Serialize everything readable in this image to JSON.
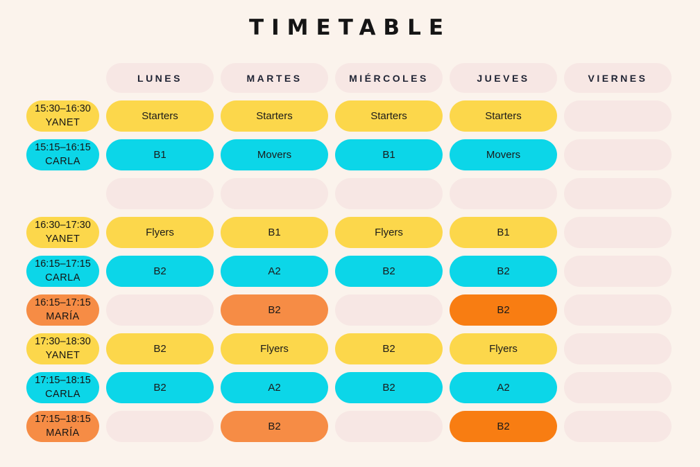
{
  "title": "TIMETABLE",
  "palette": {
    "background": "#fbf3ec",
    "empty_pill": "#f7e7e4",
    "yellow": "#fcd74b",
    "cyan": "#0cd6e8",
    "orange": "#f68c45",
    "orange_dark": "#f87d12",
    "header_text": "#1f2333",
    "cell_text": "#1a1a1a"
  },
  "days": [
    "LUNES",
    "MARTES",
    "MIÉRCOLES",
    "JUEVES",
    "VIERNES"
  ],
  "rows": [
    {
      "time": "15:30–16:30",
      "teacher": "YANET",
      "label_color": "yellow",
      "cells": [
        {
          "text": "Starters",
          "color": "yellow"
        },
        {
          "text": "Starters",
          "color": "yellow"
        },
        {
          "text": "Starters",
          "color": "yellow"
        },
        {
          "text": "Starters",
          "color": "yellow"
        },
        {
          "text": "",
          "color": "empty"
        }
      ]
    },
    {
      "time": "15:15–16:15",
      "teacher": "CARLA",
      "label_color": "cyan",
      "cells": [
        {
          "text": "B1",
          "color": "cyan"
        },
        {
          "text": "Movers",
          "color": "cyan"
        },
        {
          "text": "B1",
          "color": "cyan"
        },
        {
          "text": "Movers",
          "color": "cyan"
        },
        {
          "text": "",
          "color": "empty"
        }
      ]
    },
    {
      "time": "",
      "teacher": "",
      "label_color": "none",
      "cells": [
        {
          "text": "",
          "color": "empty"
        },
        {
          "text": "",
          "color": "empty"
        },
        {
          "text": "",
          "color": "empty"
        },
        {
          "text": "",
          "color": "empty"
        },
        {
          "text": "",
          "color": "empty"
        }
      ]
    },
    {
      "time": "16:30–17:30",
      "teacher": "YANET",
      "label_color": "yellow",
      "cells": [
        {
          "text": "Flyers",
          "color": "yellow"
        },
        {
          "text": "B1",
          "color": "yellow"
        },
        {
          "text": "Flyers",
          "color": "yellow"
        },
        {
          "text": "B1",
          "color": "yellow"
        },
        {
          "text": "",
          "color": "empty"
        }
      ]
    },
    {
      "time": "16:15–17:15",
      "teacher": "CARLA",
      "label_color": "cyan",
      "cells": [
        {
          "text": "B2",
          "color": "cyan"
        },
        {
          "text": "A2",
          "color": "cyan"
        },
        {
          "text": "B2",
          "color": "cyan"
        },
        {
          "text": "B2",
          "color": "cyan"
        },
        {
          "text": "",
          "color": "empty"
        }
      ]
    },
    {
      "time": "16:15–17:15",
      "teacher": "MARÍA",
      "label_color": "orange",
      "cells": [
        {
          "text": "",
          "color": "empty"
        },
        {
          "text": "B2",
          "color": "orange"
        },
        {
          "text": "",
          "color": "empty"
        },
        {
          "text": "B2",
          "color": "orange_dark"
        },
        {
          "text": "",
          "color": "empty"
        }
      ]
    },
    {
      "time": "17:30–18:30",
      "teacher": "YANET",
      "label_color": "yellow",
      "cells": [
        {
          "text": "B2",
          "color": "yellow"
        },
        {
          "text": "Flyers",
          "color": "yellow"
        },
        {
          "text": "B2",
          "color": "yellow"
        },
        {
          "text": "Flyers",
          "color": "yellow"
        },
        {
          "text": "",
          "color": "empty"
        }
      ]
    },
    {
      "time": "17:15–18:15",
      "teacher": "CARLA",
      "label_color": "cyan",
      "cells": [
        {
          "text": "B2",
          "color": "cyan"
        },
        {
          "text": "A2",
          "color": "cyan"
        },
        {
          "text": "B2",
          "color": "cyan"
        },
        {
          "text": "A2",
          "color": "cyan"
        },
        {
          "text": "",
          "color": "empty"
        }
      ]
    },
    {
      "time": "17:15–18:15",
      "teacher": "MARÍA",
      "label_color": "orange",
      "cells": [
        {
          "text": "",
          "color": "empty"
        },
        {
          "text": "B2",
          "color": "orange"
        },
        {
          "text": "",
          "color": "empty"
        },
        {
          "text": "B2",
          "color": "orange_dark"
        },
        {
          "text": "",
          "color": "empty"
        }
      ]
    }
  ]
}
